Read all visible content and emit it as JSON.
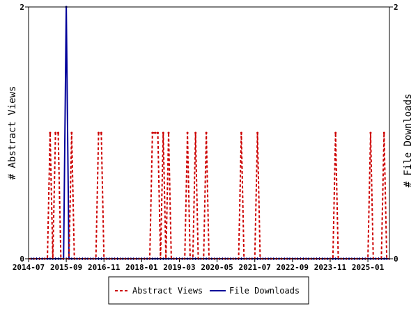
{
  "chart_data": {
    "type": "line",
    "title": "",
    "ylabel_left": "# Abstract Views",
    "ylabel_right": "# File Downloads",
    "ylim_left": [
      0,
      2
    ],
    "ylim_right": [
      0,
      2
    ],
    "y_tick_labels_left": [
      "0",
      "2"
    ],
    "y_tick_labels_right": [
      "0",
      "2"
    ],
    "x_range": [
      "2014-07",
      "2025-09"
    ],
    "x_tick_labels": [
      "2014-07",
      "2015-09",
      "2016-11",
      "2018-01",
      "2019-03",
      "2020-05",
      "2021-07",
      "2022-09",
      "2023-11",
      "2025-01"
    ],
    "grid": false,
    "legend_position": "bottom",
    "series": [
      {
        "name": "Abstract Views",
        "color": "#cc0000",
        "style": "dashed",
        "axis": "left",
        "points": [
          {
            "x": "2015-03",
            "y": 1
          },
          {
            "x": "2015-05",
            "y": 1
          },
          {
            "x": "2015-06",
            "y": 1
          },
          {
            "x": "2015-11",
            "y": 1
          },
          {
            "x": "2016-09",
            "y": 1
          },
          {
            "x": "2016-10",
            "y": 1
          },
          {
            "x": "2018-05",
            "y": 1
          },
          {
            "x": "2018-06",
            "y": 1
          },
          {
            "x": "2018-07",
            "y": 1
          },
          {
            "x": "2018-09",
            "y": 1
          },
          {
            "x": "2018-11",
            "y": 1
          },
          {
            "x": "2019-06",
            "y": 1
          },
          {
            "x": "2019-09",
            "y": 1
          },
          {
            "x": "2020-01",
            "y": 1
          },
          {
            "x": "2021-02",
            "y": 1
          },
          {
            "x": "2021-08",
            "y": 1
          },
          {
            "x": "2024-01",
            "y": 1
          },
          {
            "x": "2025-02",
            "y": 1
          },
          {
            "x": "2025-07",
            "y": 1
          }
        ]
      },
      {
        "name": "File Downloads",
        "color": "#000099",
        "style": "solid",
        "axis": "right",
        "points": [
          {
            "x": "2015-09",
            "y": 2
          }
        ]
      }
    ]
  }
}
